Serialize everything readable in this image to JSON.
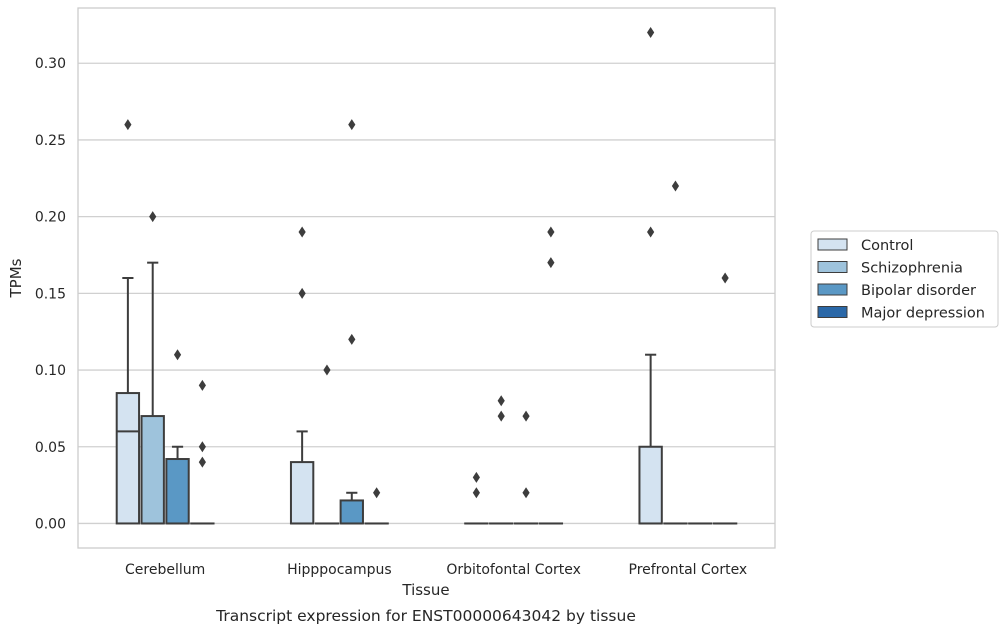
{
  "chart_data": {
    "type": "box",
    "xlabel": "Tissue",
    "ylabel": "TPMs",
    "caption": "Transcript expression for ENST00000643042 by tissue",
    "ylim": [
      -0.016,
      0.336
    ],
    "y_ticks": [
      "0.00",
      "0.05",
      "0.10",
      "0.15",
      "0.20",
      "0.25",
      "0.30"
    ],
    "grid": "horizontal",
    "legend_position": "right, outside plot",
    "categories": [
      "Cerebellum",
      "Hipppocampus",
      "Orbitofontal Cortex",
      "Prefrontal Cortex"
    ],
    "series": [
      {
        "name": "Control",
        "color": "#d4e3f1",
        "boxes": [
          {
            "min": 0,
            "q1": 0,
            "median": 0.06,
            "q3": 0.085,
            "max": 0.16,
            "outliers": [
              0.26
            ]
          },
          {
            "min": 0,
            "q1": 0,
            "median": 0,
            "q3": 0.04,
            "max": 0.06,
            "outliers": [
              0.19,
              0.15
            ]
          },
          {
            "min": 0,
            "q1": 0,
            "median": 0,
            "q3": 0,
            "max": 0,
            "outliers": [
              0.03,
              0.02
            ]
          },
          {
            "min": 0,
            "q1": 0,
            "median": 0,
            "q3": 0.05,
            "max": 0.11,
            "outliers": [
              0.32,
              0.19
            ]
          }
        ]
      },
      {
        "name": "Schizophrenia",
        "color": "#9ec3dc",
        "boxes": [
          {
            "min": 0,
            "q1": 0,
            "median": 0,
            "q3": 0.07,
            "max": 0.17,
            "outliers": [
              0.2
            ]
          },
          {
            "min": 0,
            "q1": 0,
            "median": 0,
            "q3": 0,
            "max": 0,
            "outliers": [
              0.1
            ]
          },
          {
            "min": 0,
            "q1": 0,
            "median": 0,
            "q3": 0,
            "max": 0,
            "outliers": [
              0.08,
              0.07
            ]
          },
          {
            "min": 0,
            "q1": 0,
            "median": 0,
            "q3": 0,
            "max": 0,
            "outliers": [
              0.22
            ]
          }
        ]
      },
      {
        "name": "Bipolar disorder",
        "color": "#5a98c5",
        "boxes": [
          {
            "min": 0,
            "q1": 0,
            "median": 0,
            "q3": 0.042,
            "max": 0.05,
            "outliers": [
              0.11
            ]
          },
          {
            "min": 0,
            "q1": 0,
            "median": 0,
            "q3": 0.015,
            "max": 0.02,
            "outliers": [
              0.26,
              0.12
            ]
          },
          {
            "min": 0,
            "q1": 0,
            "median": 0,
            "q3": 0,
            "max": 0,
            "outliers": [
              0.07,
              0.02
            ]
          },
          {
            "min": 0,
            "q1": 0,
            "median": 0,
            "q3": 0,
            "max": 0,
            "outliers": []
          }
        ]
      },
      {
        "name": "Major depression",
        "color": "#2a68a8",
        "boxes": [
          {
            "min": 0,
            "q1": 0,
            "median": 0,
            "q3": 0,
            "max": 0,
            "outliers": [
              0.09,
              0.05,
              0.04
            ]
          },
          {
            "min": 0,
            "q1": 0,
            "median": 0,
            "q3": 0,
            "max": 0,
            "outliers": [
              0.02
            ]
          },
          {
            "min": 0,
            "q1": 0,
            "median": 0,
            "q3": 0,
            "max": 0,
            "outliers": [
              0.19,
              0.17
            ]
          },
          {
            "min": 0,
            "q1": 0,
            "median": 0,
            "q3": 0,
            "max": 0,
            "outliers": [
              0.16
            ]
          }
        ]
      }
    ]
  }
}
